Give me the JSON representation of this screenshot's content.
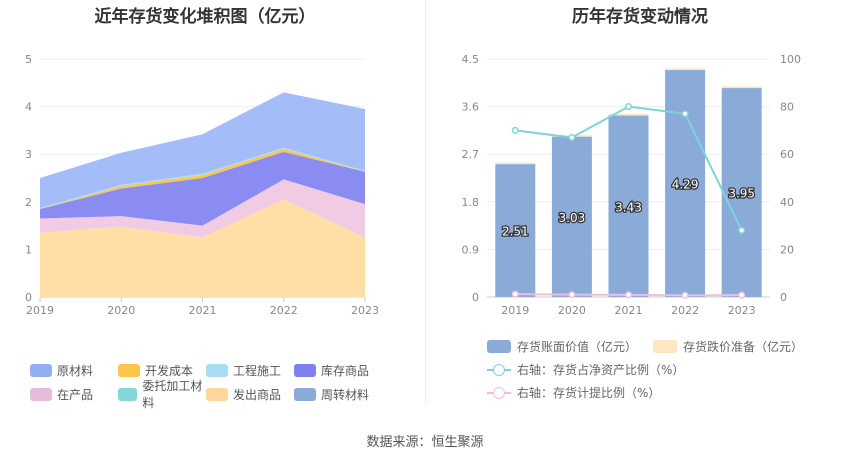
{
  "left_title": "近年存货变化堆积图（亿元）",
  "right_title": "历年存货变动情况",
  "source": "数据来源：恒生聚源",
  "chart_data": [
    {
      "type": "area",
      "stacked": true,
      "title": "近年存货变化堆积图（亿元）",
      "categories": [
        "2019",
        "2020",
        "2021",
        "2022",
        "2023"
      ],
      "ylim": [
        0,
        5
      ],
      "yticks": [
        "0",
        "1",
        "2",
        "3",
        "4",
        "5"
      ],
      "grid": true,
      "legend_position": "bottom",
      "series": [
        {
          "name": "发出商品",
          "color": "#ffdfa6",
          "values": [
            1.35,
            1.48,
            1.25,
            2.05,
            1.25
          ]
        },
        {
          "name": "在产品",
          "color": "#f0cbe3",
          "values": [
            0.3,
            0.22,
            0.25,
            0.42,
            0.7
          ]
        },
        {
          "name": "库存商品",
          "color": "#8a8cf2",
          "values": [
            0.2,
            0.58,
            1.0,
            0.58,
            0.68
          ]
        },
        {
          "name": "开发成本",
          "color": "#fcc64a",
          "values": [
            0.0,
            0.05,
            0.06,
            0.06,
            0.0
          ]
        },
        {
          "name": "工程施工",
          "color": "#abdcf5",
          "values": [
            0.02,
            0.03,
            0.03,
            0.03,
            0.02
          ]
        },
        {
          "name": "原材料",
          "color": "#a4bcf7",
          "values": [
            0.63,
            0.67,
            0.83,
            1.16,
            1.3
          ]
        },
        {
          "name": "委托加工材料",
          "color": "#84d6d8",
          "values": [
            0,
            0,
            0,
            0,
            0
          ]
        },
        {
          "name": "周转材料",
          "color": "#8aaad8",
          "values": [
            0,
            0,
            0,
            0,
            0
          ]
        }
      ],
      "legend": [
        [
          {
            "name": "原材料",
            "color": "#93aff4"
          },
          {
            "name": "开发成本",
            "color": "#fcc64a"
          },
          {
            "name": "工程施工",
            "color": "#abdcf5"
          },
          {
            "name": "库存商品",
            "color": "#7e80ef"
          }
        ],
        [
          {
            "name": "在产品",
            "color": "#e8bbdc"
          },
          {
            "name": "委托加工材料",
            "color": "#84d6d8"
          },
          {
            "name": "发出商品",
            "color": "#fdd79b"
          },
          {
            "name": "周转材料",
            "color": "#8aaad8"
          }
        ]
      ]
    },
    {
      "type": "bar",
      "title": "历年存货变动情况",
      "categories": [
        "2019",
        "2020",
        "2021",
        "2022",
        "2023"
      ],
      "ylim": [
        0,
        4.5
      ],
      "yticks": [
        "0",
        "0.9",
        "1.8",
        "2.7",
        "3.6",
        "4.5"
      ],
      "y2lim": [
        0,
        100
      ],
      "y2ticks": [
        "0",
        "20",
        "40",
        "60",
        "80",
        "100"
      ],
      "grid": true,
      "legend_position": "bottom",
      "series": [
        {
          "name": "存货账面价值（亿元）",
          "type": "bar",
          "color": "#8aaad8",
          "values": [
            2.51,
            3.03,
            3.43,
            4.29,
            3.95
          ],
          "labels": [
            "2.51",
            "3.03",
            "3.43",
            "4.29",
            "3.95"
          ]
        },
        {
          "name": "存货跌价准备（亿元）",
          "type": "bar",
          "color": "#fde6c0",
          "values": [
            0.03,
            0.03,
            0.03,
            0.03,
            0.03
          ]
        },
        {
          "name": "右轴：存货占净资产比例（%）",
          "type": "line",
          "axis": "right",
          "color": "#7fd3d8",
          "values": [
            70,
            67,
            80,
            77,
            28
          ]
        },
        {
          "name": "右轴：存货计提比例（%）",
          "type": "line",
          "axis": "right",
          "color": "#efc0de",
          "values": [
            1.2,
            1.0,
            0.9,
            0.7,
            0.8
          ]
        }
      ]
    }
  ]
}
